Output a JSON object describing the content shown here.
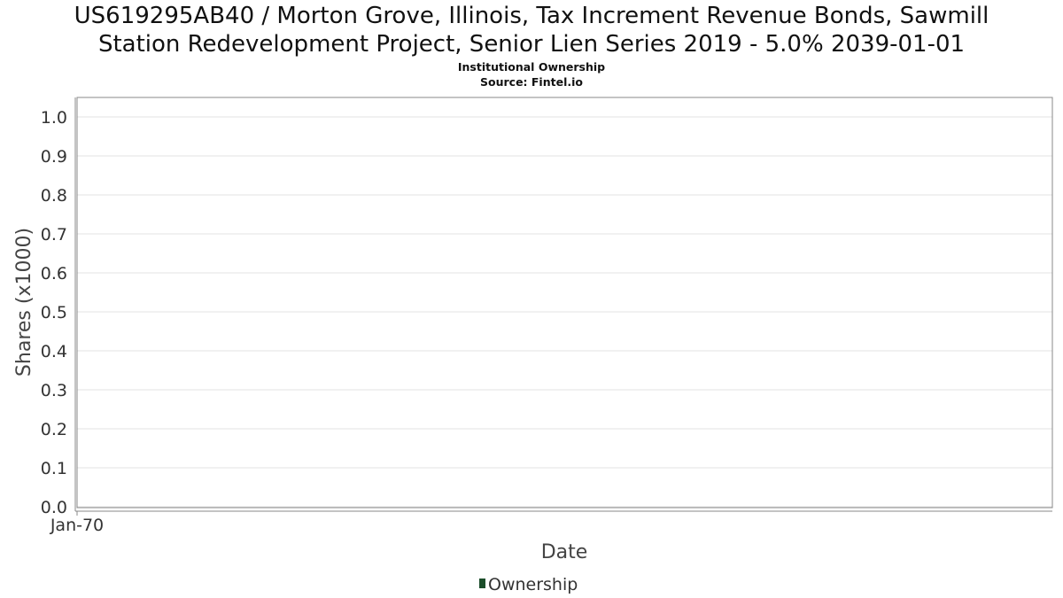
{
  "chart_data": {
    "type": "line",
    "title": "US619295AB40 / Morton Grove, Illinois, Tax Increment Revenue Bonds, Sawmill Station Redevelopment Project, Senior Lien Series 2019 - 5.0% 2039-01-01",
    "title_lines": [
      "US619295AB40 / Morton Grove, Illinois, Tax Increment Revenue Bonds, Sawmill",
      "Station Redevelopment Project, Senior Lien Series 2019 - 5.0% 2039-01-01"
    ],
    "subtitle_lines": [
      "Institutional Ownership",
      "Source: Fintel.io"
    ],
    "xlabel": "Date",
    "ylabel": "Shares (x1000)",
    "ylim": [
      0,
      1.0
    ],
    "y_ticks": [
      0.0,
      0.1,
      0.2,
      0.3,
      0.4,
      0.5,
      0.6,
      0.7,
      0.8,
      0.9,
      1.0
    ],
    "y_tick_labels": [
      "0.0",
      "0.1",
      "0.2",
      "0.3",
      "0.4",
      "0.5",
      "0.6",
      "0.7",
      "0.8",
      "0.9",
      "1.0"
    ],
    "x_tick_labels": [
      "Jan-70"
    ],
    "grid": true,
    "legend_position": "bottom-center",
    "series": [
      {
        "name": "Ownership",
        "color": "#1b4d2a",
        "x": [],
        "values": []
      }
    ]
  }
}
